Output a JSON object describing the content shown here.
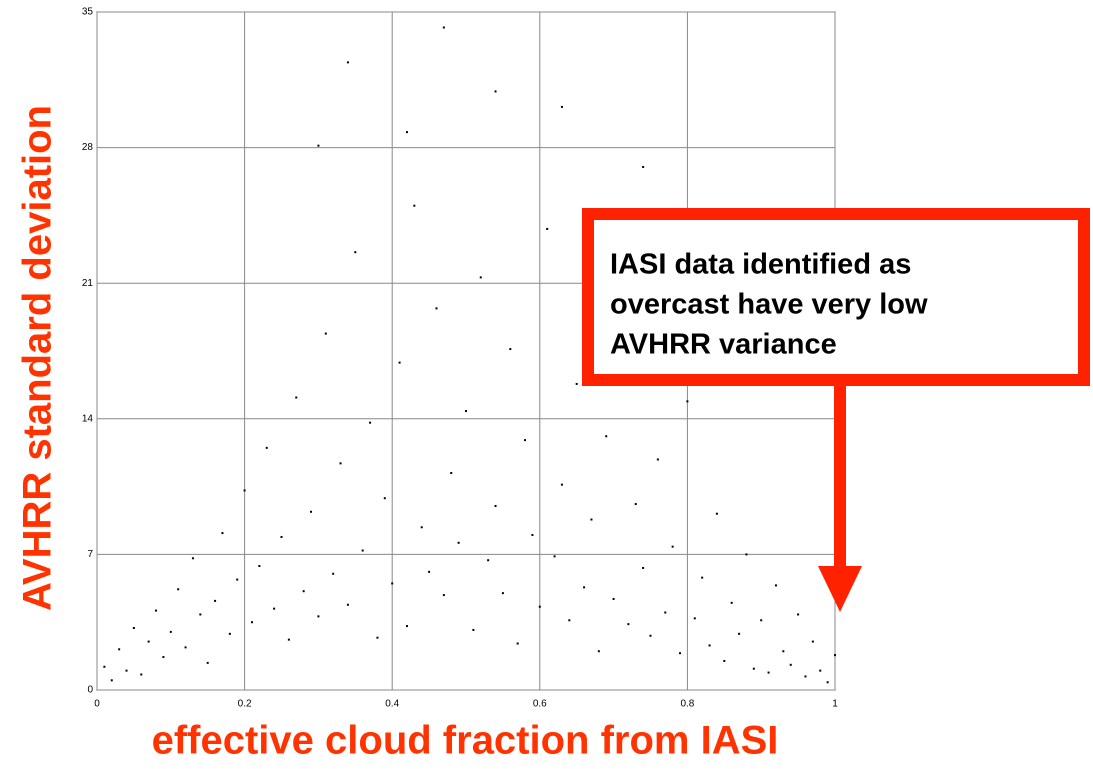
{
  "chart_data": {
    "type": "scatter",
    "x_label": "effective cloud fraction from IASI",
    "y_label": "AVHRR standard deviation",
    "annotation": [
      "IASI data identified as",
      "overcast have very low",
      "AVHRR variance"
    ],
    "color": "#000000",
    "grid": true,
    "xlim": [
      0,
      1
    ],
    "xticks": [
      0,
      0.2,
      0.4,
      0.6,
      0.8,
      1
    ],
    "ylim": [
      0,
      35
    ],
    "yticks": [
      0,
      7,
      14,
      21,
      28,
      35
    ],
    "x": [
      0.01,
      0.02,
      0.03,
      0.04,
      0.05,
      0.06,
      0.07,
      0.08,
      0.09,
      0.1,
      0.11,
      0.12,
      0.13,
      0.14,
      0.15,
      0.16,
      0.17,
      0.18,
      0.19,
      0.2,
      0.21,
      0.22,
      0.23,
      0.24,
      0.25,
      0.26,
      0.27,
      0.28,
      0.29,
      0.3,
      0.31,
      0.32,
      0.33,
      0.34,
      0.35,
      0.36,
      0.37,
      0.38,
      0.39,
      0.4,
      0.41,
      0.42,
      0.43,
      0.44,
      0.45,
      0.46,
      0.47,
      0.48,
      0.49,
      0.5,
      0.51,
      0.52,
      0.53,
      0.54,
      0.55,
      0.56,
      0.57,
      0.58,
      0.59,
      0.6,
      0.61,
      0.62,
      0.63,
      0.64,
      0.65,
      0.66,
      0.67,
      0.68,
      0.69,
      0.7,
      0.71,
      0.72,
      0.73,
      0.74,
      0.75,
      0.76,
      0.77,
      0.78,
      0.79,
      0.8,
      0.81,
      0.82,
      0.83,
      0.84,
      0.85,
      0.86,
      0.87,
      0.88,
      0.89,
      0.9,
      0.91,
      0.92,
      0.93,
      0.94,
      0.95,
      0.96,
      0.97,
      0.98,
      0.99,
      1.0,
      0.47,
      0.34,
      0.54,
      0.63,
      0.42,
      0.3,
      0.74
    ],
    "values": [
      1.2,
      0.5,
      2.1,
      1.0,
      3.2,
      0.8,
      2.5,
      4.1,
      1.7,
      3.0,
      5.2,
      2.2,
      6.8,
      3.9,
      1.4,
      4.6,
      8.1,
      2.9,
      5.7,
      10.3,
      3.5,
      6.4,
      12.5,
      4.2,
      7.9,
      2.6,
      15.1,
      5.1,
      9.2,
      3.8,
      18.4,
      6.0,
      11.7,
      4.4,
      22.6,
      7.2,
      13.8,
      2.7,
      9.9,
      5.5,
      16.9,
      3.3,
      25.0,
      8.4,
      6.1,
      19.7,
      4.9,
      11.2,
      7.6,
      14.4,
      3.1,
      21.3,
      6.7,
      9.5,
      5.0,
      17.6,
      2.4,
      12.9,
      8.0,
      4.3,
      23.8,
      6.9,
      10.6,
      3.6,
      15.8,
      5.3,
      8.8,
      2.0,
      13.1,
      4.7,
      19.0,
      3.4,
      9.6,
      6.3,
      2.8,
      11.9,
      4.0,
      7.4,
      1.9,
      14.9,
      3.7,
      5.8,
      2.3,
      9.1,
      1.5,
      4.5,
      2.9,
      7.0,
      1.1,
      3.6,
      0.9,
      5.4,
      2.0,
      1.3,
      3.9,
      0.7,
      2.5,
      1.0,
      0.4,
      1.8,
      34.2,
      32.4,
      30.9,
      30.1,
      28.8,
      28.1,
      27.0
    ]
  }
}
